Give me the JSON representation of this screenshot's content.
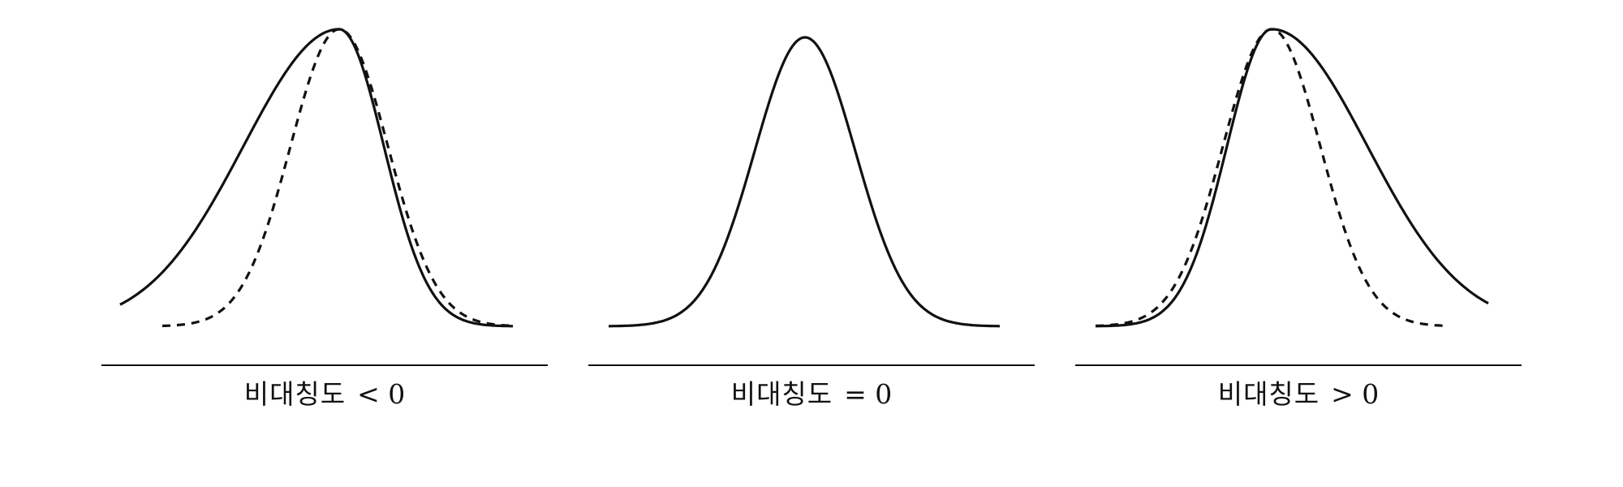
{
  "colors": {
    "background": "#ffffff",
    "stroke": "#111111"
  },
  "panels": [
    {
      "label": "비대칭도",
      "relation": "< 0",
      "curves": [
        "skewed-solid",
        "symmetric-dashed"
      ],
      "skew_direction": "left"
    },
    {
      "label": "비대칭도",
      "relation": "= 0",
      "curves": [
        "symmetric-solid"
      ],
      "skew_direction": "none"
    },
    {
      "label": "비대칭도",
      "relation": "> 0",
      "curves": [
        "skewed-solid",
        "symmetric-dashed"
      ],
      "skew_direction": "right"
    }
  ]
}
